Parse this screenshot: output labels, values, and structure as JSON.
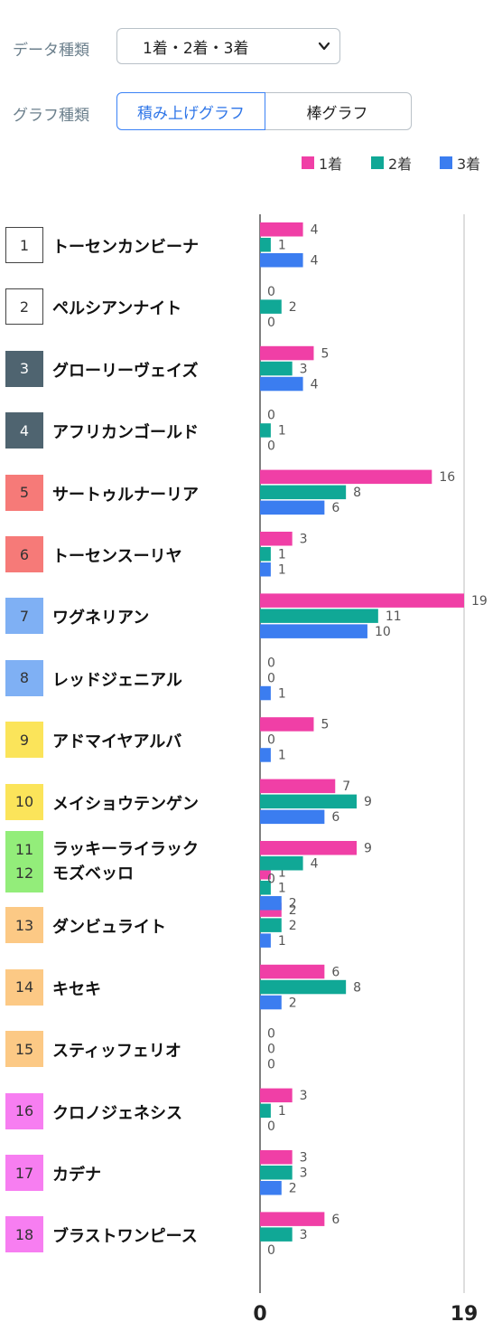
{
  "controls": {
    "data_type_label": "データ種類",
    "data_type_value": "1着・2着・3着",
    "graph_type_label": "グラフ種類",
    "graph_types": [
      "積み上げグラフ",
      "棒グラフ"
    ],
    "graph_type_selected": "積み上げグラフ"
  },
  "legend": [
    {
      "label": "1着",
      "color": "#f03fa6"
    },
    {
      "label": "2着",
      "color": "#10a896"
    },
    {
      "label": "3着",
      "color": "#3b7df0"
    }
  ],
  "gate_colors": {
    "1": {
      "bg": "#ffffff",
      "fg": "#333333",
      "border": "#444444"
    },
    "2": {
      "bg": "#ffffff",
      "fg": "#333333",
      "border": "#444444"
    },
    "3": {
      "bg": "#4f6470",
      "fg": "#ffffff",
      "border": "#4f6470"
    },
    "4": {
      "bg": "#4f6470",
      "fg": "#ffffff",
      "border": "#4f6470"
    },
    "5": {
      "bg": "#f67a78",
      "fg": "#333333",
      "border": "#f67a78"
    },
    "6": {
      "bg": "#f67a78",
      "fg": "#333333",
      "border": "#f67a78"
    },
    "7": {
      "bg": "#7fb0f4",
      "fg": "#333333",
      "border": "#7fb0f4"
    },
    "8": {
      "bg": "#7fb0f4",
      "fg": "#333333",
      "border": "#7fb0f4"
    },
    "9": {
      "bg": "#fbe45a",
      "fg": "#333333",
      "border": "#fbe45a"
    },
    "10": {
      "bg": "#fbe45a",
      "fg": "#333333",
      "border": "#fbe45a"
    },
    "11": {
      "bg": "#93ed7a",
      "fg": "#333333",
      "border": "#93ed7a"
    },
    "13": {
      "bg": "#fcc985",
      "fg": "#333333",
      "border": "#fcc985"
    },
    "14": {
      "bg": "#fcc985",
      "fg": "#333333",
      "border": "#fcc985"
    },
    "15": {
      "bg": "#fcc985",
      "fg": "#333333",
      "border": "#fcc985"
    },
    "16": {
      "bg": "#f77ef1",
      "fg": "#333333",
      "border": "#f77ef1"
    },
    "17": {
      "bg": "#f77ef1",
      "fg": "#333333",
      "border": "#f77ef1"
    },
    "18": {
      "bg": "#f77ef1",
      "fg": "#333333",
      "border": "#f77ef1"
    }
  },
  "horses": [
    {
      "nums": [
        "1"
      ],
      "names": [
        "トーセンカンビーナ"
      ]
    },
    {
      "nums": [
        "2"
      ],
      "names": [
        "ペルシアンナイト"
      ]
    },
    {
      "nums": [
        "3"
      ],
      "names": [
        "グローリーヴェイズ"
      ]
    },
    {
      "nums": [
        "4"
      ],
      "names": [
        "アフリカンゴールド"
      ]
    },
    {
      "nums": [
        "5"
      ],
      "names": [
        "サートゥルナーリア"
      ]
    },
    {
      "nums": [
        "6"
      ],
      "names": [
        "トーセンスーリヤ"
      ]
    },
    {
      "nums": [
        "7"
      ],
      "names": [
        "ワグネリアン"
      ]
    },
    {
      "nums": [
        "8"
      ],
      "names": [
        "レッドジェニアル"
      ]
    },
    {
      "nums": [
        "9"
      ],
      "names": [
        "アドマイヤアルバ"
      ]
    },
    {
      "nums": [
        "10"
      ],
      "names": [
        "メイショウテンゲン"
      ]
    },
    {
      "nums": [
        "11",
        "12"
      ],
      "names": [
        "ラッキーライラック",
        "モズベッロ"
      ]
    },
    {
      "nums": [
        "13"
      ],
      "names": [
        "ダンビュライト"
      ]
    },
    {
      "nums": [
        "14"
      ],
      "names": [
        "キセキ"
      ]
    },
    {
      "nums": [
        "15"
      ],
      "names": [
        "スティッフェリオ"
      ]
    },
    {
      "nums": [
        "16"
      ],
      "names": [
        "クロノジェネシス"
      ]
    },
    {
      "nums": [
        "17"
      ],
      "names": [
        "カデナ"
      ]
    },
    {
      "nums": [
        "18"
      ],
      "names": [
        "ブラストワンピース"
      ]
    }
  ],
  "chart_data": {
    "type": "bar",
    "orientation": "horizontal",
    "categories": [
      "トーセンカンビーナ",
      "ペルシアンナイト",
      "グローリーヴェイズ",
      "アフリカンゴールド",
      "サートゥルナーリア",
      "トーセンスーリヤ",
      "ワグネリアン",
      "レッドジェニアル",
      "アドマイヤアルバ",
      "メイショウテンゲン",
      "ラッキーライラック",
      "モズベッロ",
      "ダンビュライト",
      "キセキ",
      "スティッフェリオ",
      "クロノジェネシス",
      "カデナ",
      "ブラストワンピース"
    ],
    "series": [
      {
        "name": "1着",
        "values": [
          4,
          0,
          5,
          0,
          16,
          3,
          19,
          0,
          5,
          7,
          9,
          1,
          2,
          6,
          0,
          3,
          3,
          6
        ]
      },
      {
        "name": "2着",
        "values": [
          1,
          2,
          3,
          1,
          8,
          1,
          11,
          0,
          0,
          9,
          4,
          1,
          2,
          8,
          0,
          1,
          3,
          3
        ]
      },
      {
        "name": "3着",
        "values": [
          4,
          0,
          4,
          0,
          6,
          1,
          10,
          1,
          1,
          6,
          0,
          2,
          1,
          2,
          0,
          0,
          2,
          0
        ]
      }
    ],
    "xlim": [
      0,
      19
    ],
    "xticks": [
      "0",
      "19"
    ],
    "grid": true,
    "legend_position": "top-right"
  }
}
